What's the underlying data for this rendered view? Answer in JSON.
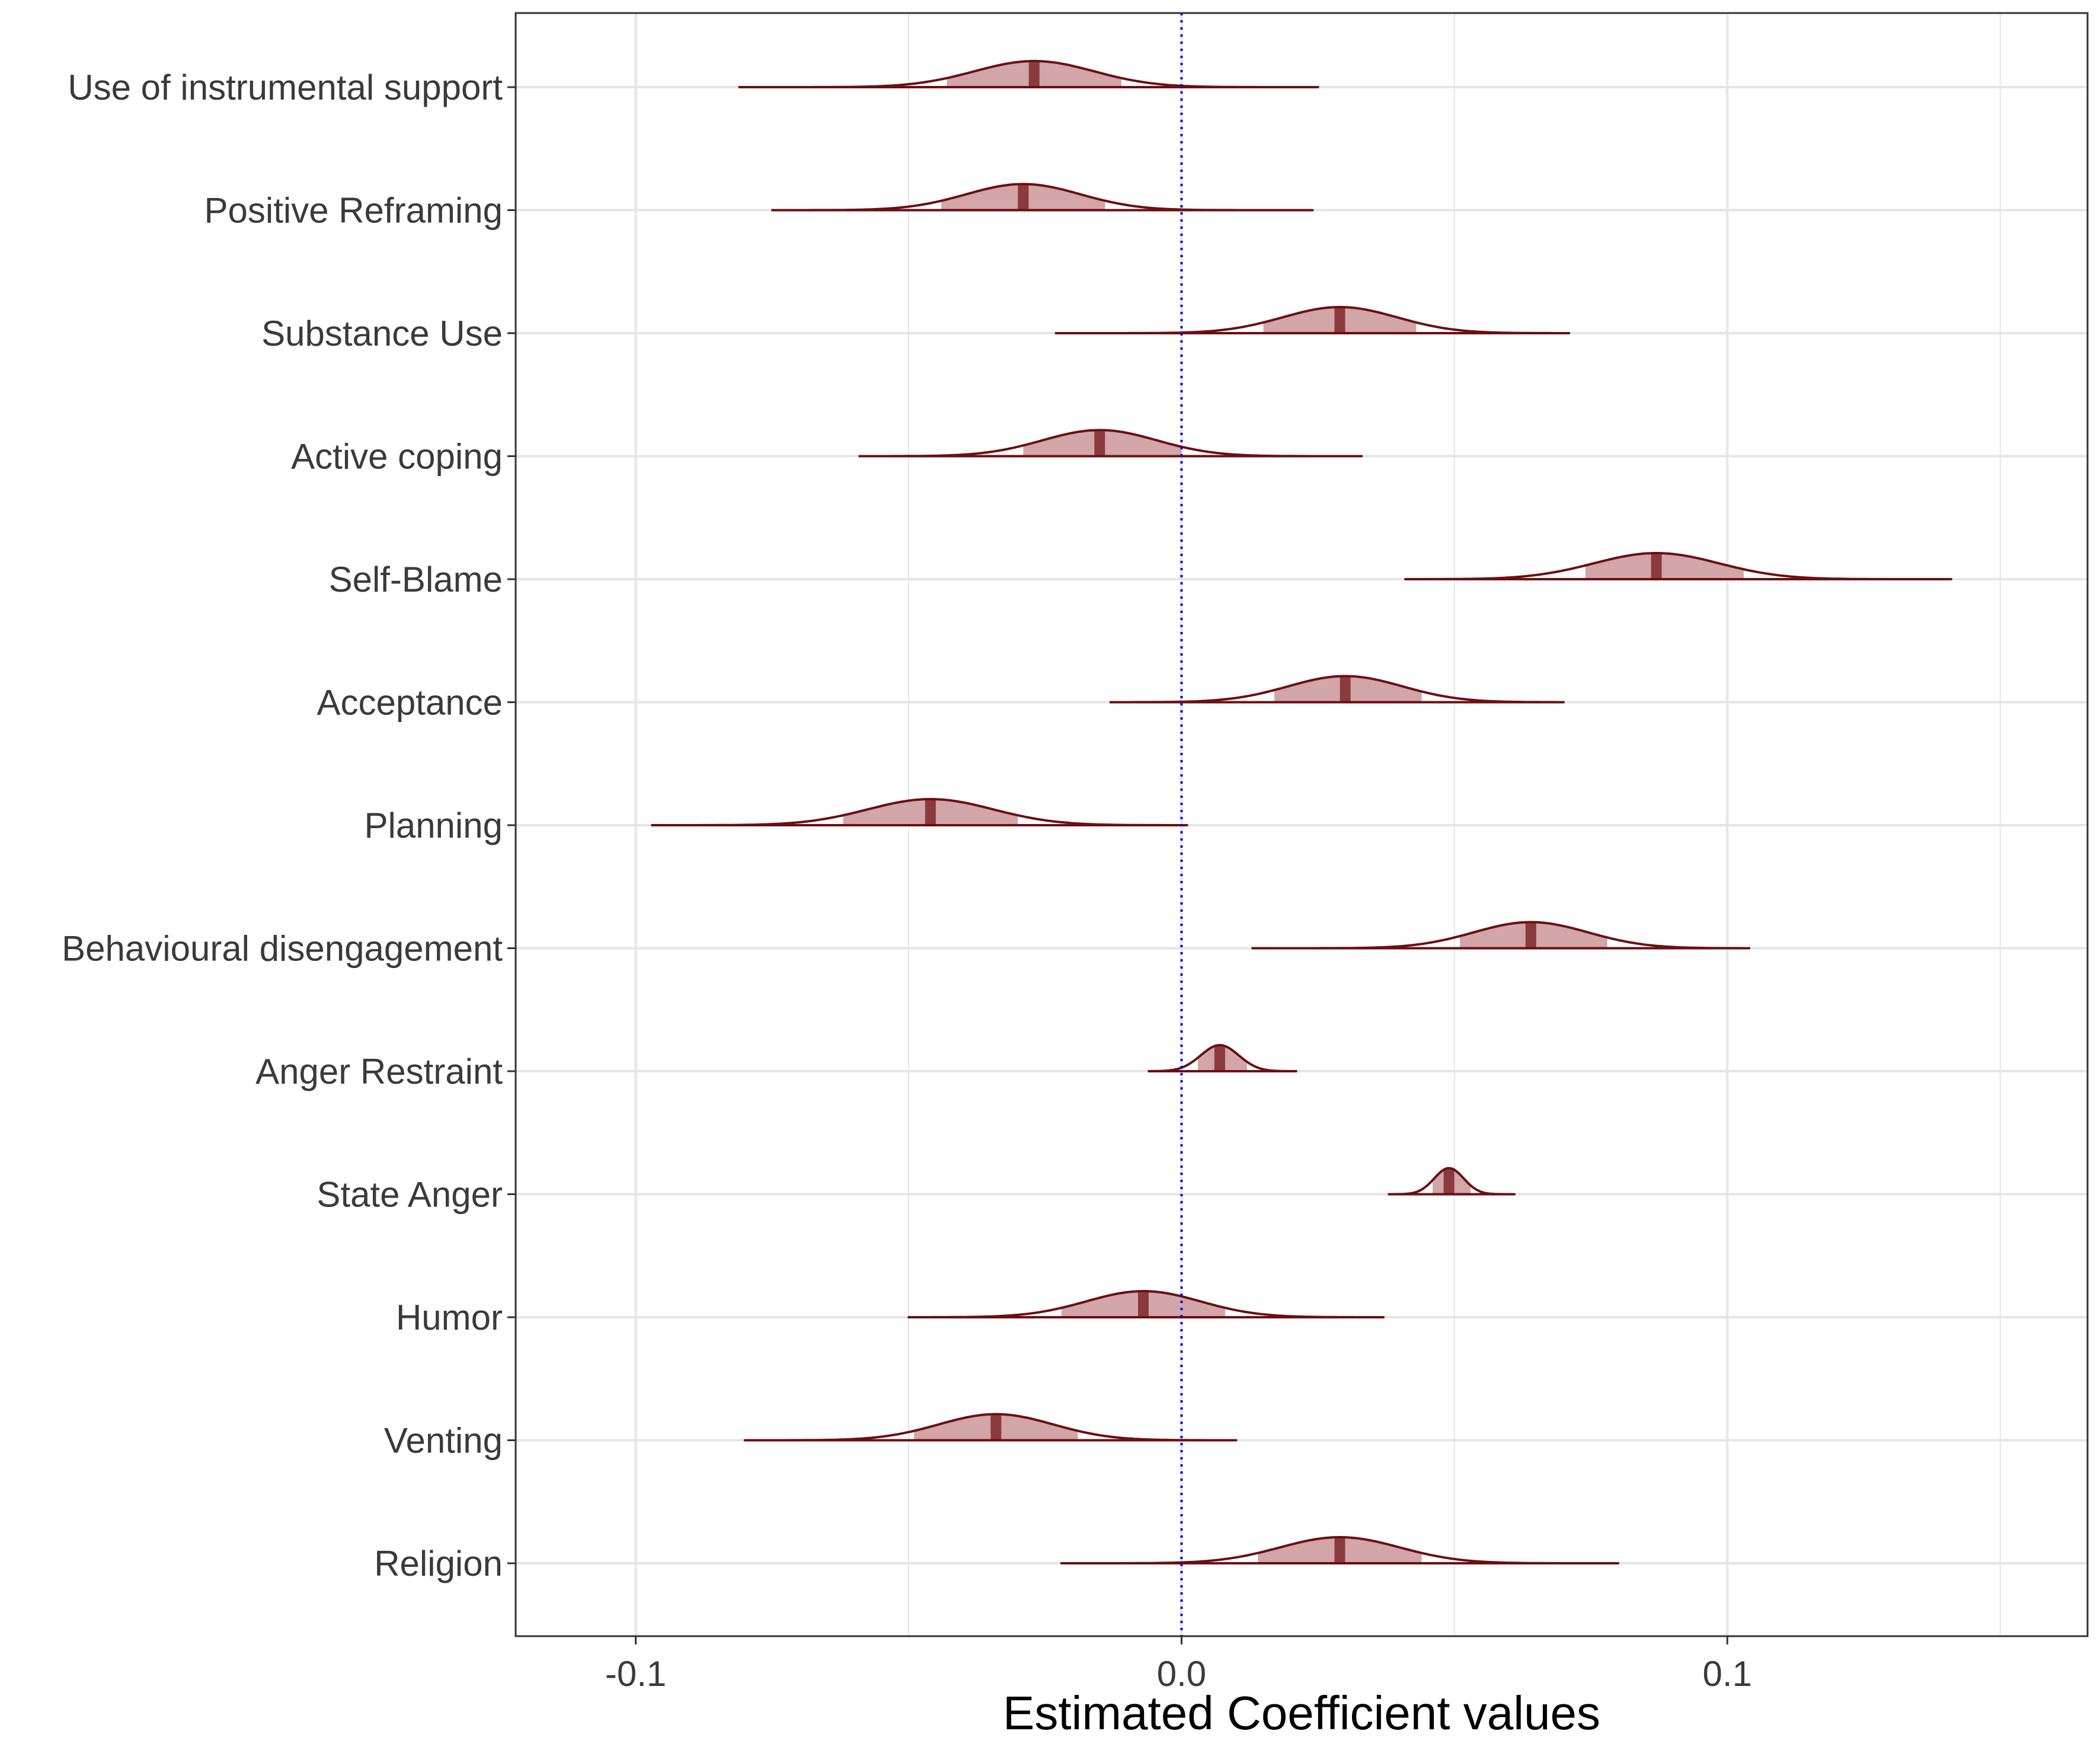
{
  "chart_data": {
    "type": "area",
    "subtype": "posterior-density-ridges",
    "title": "",
    "xlabel": "Estimated Coefficient values",
    "ylabel": "",
    "xlim": [
      -0.122,
      0.166
    ],
    "x_ticks": [
      -0.1,
      0.0,
      0.1
    ],
    "x_tick_labels": [
      "-0.1",
      "0.0",
      "0.1"
    ],
    "x_minor_gridlines": [
      -0.05,
      0.05,
      0.15
    ],
    "grid": true,
    "reference_line": {
      "x": 0.0,
      "style": "dotted",
      "color": "#0000ee"
    },
    "colors": {
      "outline": "#6b0f12",
      "interval_fill": "#d2a5a8",
      "median_line": "#8b3a3e",
      "gridline": "#e5e5e5"
    },
    "series": [
      {
        "name": "Use of instrumental support",
        "median": -0.027,
        "interval": [
          -0.043,
          -0.011
        ],
        "range": [
          -0.081,
          0.025
        ],
        "spread": 0.011
      },
      {
        "name": "Positive Reframing",
        "median": -0.029,
        "interval": [
          -0.044,
          -0.014
        ],
        "range": [
          -0.075,
          0.024
        ],
        "spread": 0.0105
      },
      {
        "name": "Substance Use",
        "median": 0.029,
        "interval": [
          0.015,
          0.043
        ],
        "range": [
          -0.023,
          0.071
        ],
        "spread": 0.0105
      },
      {
        "name": "Active coping",
        "median": -0.015,
        "interval": [
          -0.029,
          0.0
        ],
        "range": [
          -0.059,
          0.033
        ],
        "spread": 0.0105
      },
      {
        "name": "Self-Blame",
        "median": 0.087,
        "interval": [
          0.074,
          0.103
        ],
        "range": [
          0.041,
          0.141
        ],
        "spread": 0.0115
      },
      {
        "name": "Acceptance",
        "median": 0.03,
        "interval": [
          0.017,
          0.044
        ],
        "range": [
          -0.013,
          0.07
        ],
        "spread": 0.0105
      },
      {
        "name": "Planning",
        "median": -0.046,
        "interval": [
          -0.062,
          -0.03
        ],
        "range": [
          -0.097,
          0.001
        ],
        "spread": 0.0115
      },
      {
        "name": "Behavioural disengagement",
        "median": 0.064,
        "interval": [
          0.051,
          0.078
        ],
        "range": [
          0.013,
          0.104
        ],
        "spread": 0.0105
      },
      {
        "name": "Anger Restraint",
        "median": 0.007,
        "interval": [
          0.003,
          0.012
        ],
        "range": [
          -0.006,
          0.021
        ],
        "spread": 0.0035
      },
      {
        "name": "State Anger",
        "median": 0.049,
        "interval": [
          0.046,
          0.053
        ],
        "range": [
          0.038,
          0.061
        ],
        "spread": 0.0027
      },
      {
        "name": "Humor",
        "median": -0.007,
        "interval": [
          -0.022,
          0.008
        ],
        "range": [
          -0.05,
          0.037
        ],
        "spread": 0.0105
      },
      {
        "name": "Venting",
        "median": -0.034,
        "interval": [
          -0.049,
          -0.019
        ],
        "range": [
          -0.08,
          0.01
        ],
        "spread": 0.0105
      },
      {
        "name": "Religion",
        "median": 0.029,
        "interval": [
          0.014,
          0.044
        ],
        "range": [
          -0.022,
          0.08
        ],
        "spread": 0.011
      }
    ]
  }
}
